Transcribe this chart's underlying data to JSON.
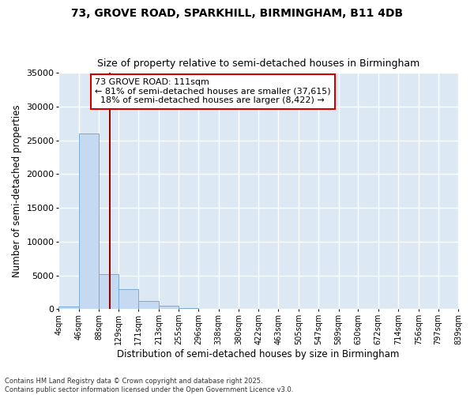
{
  "title_line1": "73, GROVE ROAD, SPARKHILL, BIRMINGHAM, B11 4DB",
  "title_line2": "Size of property relative to semi-detached houses in Birmingham",
  "xlabel": "Distribution of semi-detached houses by size in Birmingham",
  "ylabel": "Number of semi-detached properties",
  "bin_edges": [
    4,
    46,
    88,
    129,
    171,
    213,
    255,
    296,
    338,
    380,
    422,
    463,
    505,
    547,
    589,
    630,
    672,
    714,
    756,
    797,
    839
  ],
  "bar_heights": [
    400,
    26000,
    5200,
    3000,
    1200,
    550,
    200,
    0,
    0,
    0,
    0,
    0,
    0,
    0,
    0,
    0,
    0,
    0,
    0,
    0
  ],
  "bar_color": "#c5d9f0",
  "bar_edge_color": "#7aaad4",
  "vline_x": 111,
  "vline_color": "#990000",
  "annotation_text": "73 GROVE ROAD: 111sqm\n← 81% of semi-detached houses are smaller (37,615)\n  18% of semi-detached houses are larger (8,422) →",
  "annotation_box_facecolor": "#ffffff",
  "annotation_box_edgecolor": "#cc0000",
  "ylim": [
    0,
    35000
  ],
  "yticks": [
    0,
    5000,
    10000,
    15000,
    20000,
    25000,
    30000,
    35000
  ],
  "bg_color": "#dce9f5",
  "grid_color": "#ffffff",
  "fig_bg_color": "#ffffff",
  "footer_line1": "Contains HM Land Registry data © Crown copyright and database right 2025.",
  "footer_line2": "Contains public sector information licensed under the Open Government Licence v3.0.",
  "title_fontsize": 10,
  "subtitle_fontsize": 9,
  "axis_label_fontsize": 8.5,
  "tick_fontsize": 7,
  "annotation_fontsize": 8
}
